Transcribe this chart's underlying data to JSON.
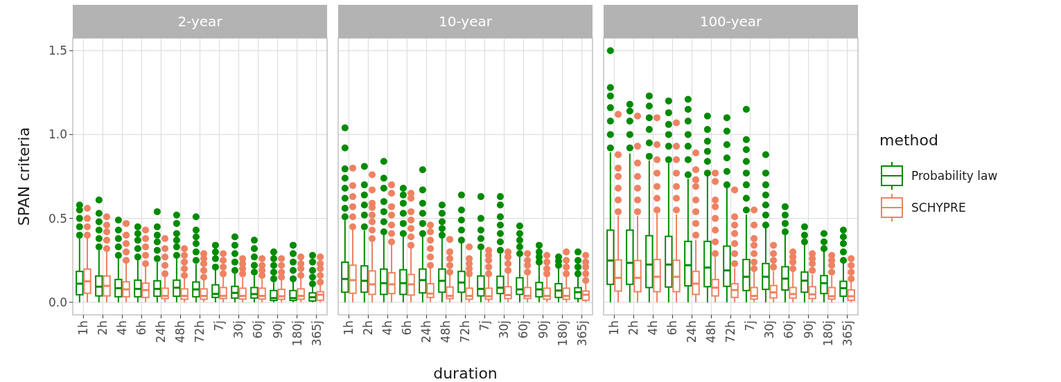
{
  "chart_data": [
    {
      "type": "box",
      "title": "2-year",
      "ylabel": "SPAN criteria",
      "categories": [
        "1h",
        "2h",
        "4h",
        "6h",
        "24h",
        "48h",
        "72h",
        "7j",
        "30j",
        "60j",
        "90j",
        "180j",
        "365j"
      ],
      "ylim": [
        -0.075,
        1.575
      ],
      "yticks": [
        {
          "value": 0,
          "label": "0.0"
        },
        0.5,
        {
          "value": 1,
          "label": "1.0"
        },
        1.5
      ],
      "grid": true,
      "legend": false,
      "series": [
        {
          "color": "#008b00",
          "boxes": [
            {
              "low": 0,
              "q1": 0.045,
              "median": 0.111,
              "q3": 0.184,
              "high": 0.38,
              "outliers": [
                0.4,
                0.45,
                0.5,
                0.55,
                0.58
              ]
            },
            {
              "low": 0,
              "q1": 0.038,
              "median": 0.093,
              "q3": 0.157,
              "high": 0.31,
              "outliers": [
                0.33,
                0.38,
                0.43,
                0.48,
                0.53,
                0.61
              ]
            },
            {
              "low": 0,
              "q1": 0.033,
              "median": 0.084,
              "q3": 0.136,
              "high": 0.26,
              "outliers": [
                0.28,
                0.33,
                0.38,
                0.43,
                0.49
              ]
            },
            {
              "low": 0,
              "q1": 0.033,
              "median": 0.08,
              "q3": 0.132,
              "high": 0.255,
              "outliers": [
                0.27,
                0.32,
                0.37,
                0.41,
                0.45
              ]
            },
            {
              "low": 0,
              "q1": 0.036,
              "median": 0.08,
              "q3": 0.128,
              "high": 0.24,
              "outliers": [
                0.26,
                0.31,
                0.36,
                0.4,
                0.45,
                0.54
              ]
            },
            {
              "low": 0,
              "q1": 0.036,
              "median": 0.087,
              "q3": 0.132,
              "high": 0.26,
              "outliers": [
                0.28,
                0.33,
                0.37,
                0.41,
                0.47,
                0.52
              ]
            },
            {
              "low": 0,
              "q1": 0.033,
              "median": 0.077,
              "q3": 0.121,
              "high": 0.228,
              "outliers": [
                0.25,
                0.3,
                0.35,
                0.39,
                0.43,
                0.51
              ]
            },
            {
              "low": 0,
              "q1": 0.029,
              "median": 0.05,
              "q3": 0.104,
              "high": 0.194,
              "outliers": [
                0.21,
                0.26,
                0.3,
                0.34
              ]
            },
            {
              "low": 0,
              "q1": 0.025,
              "median": 0.056,
              "q3": 0.095,
              "high": 0.173,
              "outliers": [
                0.19,
                0.24,
                0.29,
                0.34,
                0.39
              ]
            },
            {
              "low": 0,
              "q1": 0.025,
              "median": 0.049,
              "q3": 0.088,
              "high": 0.159,
              "outliers": [
                0.18,
                0.22,
                0.27,
                0.32,
                0.37
              ]
            },
            {
              "low": 0,
              "q1": 0.011,
              "median": 0.025,
              "q3": 0.07,
              "high": 0.118,
              "outliers": [
                0.14,
                0.18,
                0.22,
                0.26,
                0.3
              ]
            },
            {
              "low": 0,
              "q1": 0.011,
              "median": 0.025,
              "q3": 0.07,
              "high": 0.125,
              "outliers": [
                0.14,
                0.19,
                0.24,
                0.29,
                0.34
              ]
            },
            {
              "low": 0,
              "q1": 0.008,
              "median": 0.03,
              "q3": 0.056,
              "high": 0.09,
              "outliers": [
                0.11,
                0.15,
                0.19,
                0.24,
                0.28
              ]
            }
          ]
        },
        {
          "color": "#ee8262",
          "boxes": [
            {
              "low": 0,
              "q1": 0.054,
              "median": 0.125,
              "q3": 0.198,
              "high": 0.386,
              "outliers": [
                0.4,
                0.45,
                0.5,
                0.56
              ]
            },
            {
              "low": 0,
              "q1": 0.038,
              "median": 0.098,
              "q3": 0.157,
              "high": 0.3,
              "outliers": [
                0.32,
                0.37,
                0.42,
                0.46,
                0.51
              ]
            },
            {
              "low": 0,
              "q1": 0.033,
              "median": 0.077,
              "q3": 0.122,
              "high": 0.235,
              "outliers": [
                0.25,
                0.3,
                0.35,
                0.4,
                0.47
              ]
            },
            {
              "low": 0,
              "q1": 0.029,
              "median": 0.073,
              "q3": 0.114,
              "high": 0.214,
              "outliers": [
                0.23,
                0.28,
                0.33,
                0.38,
                0.43
              ]
            },
            {
              "low": 0,
              "q1": 0.022,
              "median": 0.038,
              "q3": 0.084,
              "high": 0.152,
              "outliers": [
                0.17,
                0.22,
                0.27,
                0.32,
                0.38
              ]
            },
            {
              "low": 0,
              "q1": 0.018,
              "median": 0.038,
              "q3": 0.08,
              "high": 0.146,
              "outliers": [
                0.16,
                0.2,
                0.24,
                0.28,
                0.32
              ]
            },
            {
              "low": 0,
              "q1": 0.018,
              "median": 0.038,
              "q3": 0.08,
              "high": 0.139,
              "outliers": [
                0.15,
                0.19,
                0.23,
                0.26,
                0.29
              ]
            },
            {
              "low": 0,
              "q1": 0.022,
              "median": 0.038,
              "q3": 0.088,
              "high": 0.152,
              "outliers": [
                0.17,
                0.21,
                0.25,
                0.29
              ]
            },
            {
              "low": 0,
              "q1": 0.019,
              "median": 0.038,
              "q3": 0.084,
              "high": 0.15,
              "outliers": [
                0.17,
                0.2,
                0.23,
                0.26
              ]
            },
            {
              "low": 0,
              "q1": 0.019,
              "median": 0.038,
              "q3": 0.084,
              "high": 0.14,
              "outliers": [
                0.16,
                0.19,
                0.22,
                0.26
              ]
            },
            {
              "low": 0,
              "q1": 0.018,
              "median": 0.036,
              "q3": 0.077,
              "high": 0.136,
              "outliers": [
                0.15,
                0.18,
                0.22,
                0.26
              ]
            },
            {
              "low": 0,
              "q1": 0.018,
              "median": 0.038,
              "q3": 0.08,
              "high": 0.146,
              "outliers": [
                0.16,
                0.2,
                0.23,
                0.27
              ]
            },
            {
              "low": 0,
              "q1": 0.012,
              "median": 0.045,
              "q3": 0.063,
              "high": 0.104,
              "outliers": [
                0.12,
                0.16,
                0.2,
                0.23,
                0.27
              ]
            }
          ]
        }
      ]
    },
    {
      "type": "box",
      "title": "10-year",
      "xlabel": "duration",
      "categories": [
        "1h",
        "2h",
        "4h",
        "6h",
        "24h",
        "48h",
        "72h",
        "7j",
        "30j",
        "60j",
        "90j",
        "180j",
        "365j"
      ],
      "ylim": [
        -0.075,
        1.575
      ],
      "yticks": [
        {
          "value": 0,
          "label": null
        },
        {
          "value": 0.5,
          "label": null
        },
        {
          "value": 1,
          "label": null
        },
        {
          "value": 1.5,
          "label": null
        }
      ],
      "tick_labels": "x",
      "grid": true,
      "legend": false,
      "series": [
        {
          "color": "#008b00",
          "boxes": [
            {
              "low": 0,
              "q1": 0.06,
              "median": 0.139,
              "q3": 0.239,
              "high": 0.489,
              "outliers": [
                0.51,
                0.56,
                0.62,
                0.68,
                0.74,
                0.795,
                0.92,
                1.04
              ]
            },
            {
              "low": 0,
              "q1": 0.06,
              "median": 0.128,
              "q3": 0.217,
              "high": 0.427,
              "outliers": [
                0.45,
                0.52,
                0.58,
                0.64,
                0.7,
                0.81
              ]
            },
            {
              "low": 0,
              "q1": 0.047,
              "median": 0.114,
              "q3": 0.198,
              "high": 0.4,
              "outliers": [
                0.42,
                0.48,
                0.54,
                0.6,
                0.68,
                0.74,
                0.84
              ]
            },
            {
              "low": 0,
              "q1": 0.047,
              "median": 0.114,
              "q3": 0.194,
              "high": 0.393,
              "outliers": [
                0.41,
                0.47,
                0.53,
                0.59,
                0.64,
                0.68
              ]
            },
            {
              "low": 0,
              "q1": 0.056,
              "median": 0.132,
              "q3": 0.198,
              "high": 0.393,
              "outliers": [
                0.41,
                0.47,
                0.53,
                0.59,
                0.67,
                0.79
              ]
            },
            {
              "low": 0,
              "q1": 0.06,
              "median": 0.128,
              "q3": 0.198,
              "high": 0.386,
              "outliers": [
                0.4,
                0.44,
                0.48,
                0.53,
                0.58
              ]
            },
            {
              "low": 0,
              "q1": 0.06,
              "median": 0.118,
              "q3": 0.184,
              "high": 0.352,
              "outliers": [
                0.37,
                0.43,
                0.49,
                0.55,
                0.64
              ]
            },
            {
              "low": 0,
              "q1": 0.038,
              "median": 0.08,
              "q3": 0.157,
              "high": 0.31,
              "outliers": [
                0.33,
                0.38,
                0.43,
                0.5,
                0.63
              ]
            },
            {
              "low": 0,
              "q1": 0.052,
              "median": 0.087,
              "q3": 0.155,
              "high": 0.29,
              "outliers": [
                0.31,
                0.36,
                0.41,
                0.46,
                0.51,
                0.58,
                0.63
              ]
            },
            {
              "low": 0,
              "q1": 0.047,
              "median": 0.077,
              "q3": 0.146,
              "high": 0.276,
              "outliers": [
                0.29,
                0.33,
                0.37,
                0.41,
                0.455
              ]
            },
            {
              "low": 0,
              "q1": 0.033,
              "median": 0.077,
              "q3": 0.118,
              "high": 0.228,
              "outliers": [
                0.24,
                0.27,
                0.3,
                0.34
              ]
            },
            {
              "low": 0,
              "q1": 0.029,
              "median": 0.07,
              "q3": 0.111,
              "high": 0.207,
              "outliers": [
                0.22,
                0.245,
                0.27
              ]
            },
            {
              "low": 0,
              "q1": 0.022,
              "median": 0.06,
              "q3": 0.087,
              "high": 0.152,
              "outliers": [
                0.17,
                0.21,
                0.25,
                0.3
              ]
            }
          ]
        },
        {
          "color": "#ee8262",
          "boxes": [
            {
              "low": 0,
              "q1": 0.054,
              "median": 0.132,
              "q3": 0.221,
              "high": 0.434,
              "outliers": [
                0.45,
                0.51,
                0.57,
                0.63,
                0.695,
                0.8
              ]
            },
            {
              "low": 0,
              "q1": 0.047,
              "median": 0.107,
              "q3": 0.187,
              "high": 0.365,
              "outliers": [
                0.38,
                0.43,
                0.48,
                0.52,
                0.565,
                0.59,
                0.67,
                0.76
              ]
            },
            {
              "low": 0,
              "q1": 0.052,
              "median": 0.107,
              "q3": 0.176,
              "high": 0.342,
              "outliers": [
                0.36,
                0.41,
                0.46,
                0.52,
                0.57,
                0.65,
                0.7
              ]
            },
            {
              "low": 0,
              "q1": 0.043,
              "median": 0.107,
              "q3": 0.166,
              "high": 0.324,
              "outliers": [
                0.34,
                0.39,
                0.44,
                0.49,
                0.54,
                0.62,
                0.65
              ]
            },
            {
              "low": 0,
              "q1": 0.029,
              "median": 0.052,
              "q3": 0.111,
              "high": 0.207,
              "outliers": [
                0.22,
                0.27,
                0.32,
                0.37,
                0.42,
                0.46
              ]
            },
            {
              "low": 0,
              "q1": 0.022,
              "median": 0.038,
              "q3": 0.091,
              "high": 0.166,
              "outliers": [
                0.18,
                0.22,
                0.26,
                0.3,
                0.375
              ]
            },
            {
              "low": 0,
              "q1": 0.018,
              "median": 0.038,
              "q3": 0.084,
              "high": 0.152,
              "outliers": [
                0.17,
                0.2,
                0.23,
                0.26,
                0.33
              ]
            },
            {
              "low": 0,
              "q1": 0.018,
              "median": 0.036,
              "q3": 0.084,
              "high": 0.152,
              "outliers": [
                0.17,
                0.21,
                0.25,
                0.28,
                0.31
              ]
            },
            {
              "low": 0,
              "q1": 0.022,
              "median": 0.043,
              "q3": 0.093,
              "high": 0.173,
              "outliers": [
                0.19,
                0.23,
                0.27,
                0.3
              ]
            },
            {
              "low": 0,
              "q1": 0.022,
              "median": 0.038,
              "q3": 0.088,
              "high": 0.159,
              "outliers": [
                0.18,
                0.22,
                0.25,
                0.29
              ]
            },
            {
              "low": 0,
              "q1": 0.018,
              "median": 0.038,
              "q3": 0.084,
              "high": 0.152,
              "outliers": [
                0.17,
                0.2,
                0.24,
                0.28
              ]
            },
            {
              "low": 0,
              "q1": 0.018,
              "median": 0.038,
              "q3": 0.084,
              "high": 0.152,
              "outliers": [
                0.17,
                0.21,
                0.25,
                0.3
              ]
            },
            {
              "low": 0,
              "q1": 0.012,
              "median": 0.045,
              "q3": 0.067,
              "high": 0.111,
              "outliers": [
                0.13,
                0.17,
                0.21,
                0.24,
                0.28
              ]
            }
          ]
        }
      ]
    },
    {
      "type": "box",
      "title": "100-year",
      "categories": [
        "1h",
        "2h",
        "4h",
        "6h",
        "24h",
        "48h",
        "72h",
        "7j",
        "30j",
        "60j",
        "90j",
        "180j",
        "365j"
      ],
      "ylim": [
        -0.075,
        1.575
      ],
      "yticks": [
        {
          "value": 0,
          "label": null
        },
        {
          "value": 0.5,
          "label": null
        },
        {
          "value": 1,
          "label": null
        },
        {
          "value": 1.5,
          "label": null
        }
      ],
      "tick_labels": "x",
      "grid": true,
      "legend": "right",
      "legend_title": "method",
      "series": [
        {
          "name": "Probability law",
          "color": "#008b00",
          "boxes": [
            {
              "low": 0,
              "q1": 0.107,
              "median": 0.249,
              "q3": 0.43,
              "high": 0.894,
              "outliers": [
                0.92,
                1.0,
                1.08,
                1.16,
                1.23,
                1.28,
                1.5
              ]
            },
            {
              "low": 0,
              "q1": 0.107,
              "median": 0.235,
              "q3": 0.43,
              "high": 0.887,
              "outliers": [
                0.92,
                1.0,
                1.08,
                1.14,
                1.18
              ]
            },
            {
              "low": 0,
              "q1": 0.088,
              "median": 0.225,
              "q3": 0.397,
              "high": 0.846,
              "outliers": [
                0.87,
                0.95,
                1.03,
                1.1,
                1.17,
                1.23
              ]
            },
            {
              "low": 0,
              "q1": 0.091,
              "median": 0.225,
              "q3": 0.393,
              "high": 0.83,
              "outliers": [
                0.85,
                0.93,
                1.0,
                1.06,
                1.13,
                1.2
              ]
            },
            {
              "low": 0,
              "q1": 0.098,
              "median": 0.221,
              "q3": 0.363,
              "high": 0.736,
              "outliers": [
                0.76,
                0.85,
                0.93,
                1.0,
                1.08,
                1.15,
                1.21
              ]
            },
            {
              "low": 0,
              "q1": 0.093,
              "median": 0.207,
              "q3": 0.363,
              "high": 0.75,
              "outliers": [
                0.77,
                0.84,
                0.9,
                0.96,
                1.03,
                1.11
              ]
            },
            {
              "low": 0,
              "q1": 0.095,
              "median": 0.19,
              "q3": 0.335,
              "high": 0.681,
              "outliers": [
                0.7,
                0.78,
                0.86,
                0.94,
                1.02,
                1.1
              ]
            },
            {
              "low": 0,
              "q1": 0.07,
              "median": 0.152,
              "q3": 0.255,
              "high": 0.523,
              "outliers": [
                0.55,
                0.62,
                0.7,
                0.77,
                0.84,
                0.91,
                0.97,
                1.15
              ]
            },
            {
              "low": 0,
              "q1": 0.077,
              "median": 0.152,
              "q3": 0.231,
              "high": 0.441,
              "outliers": [
                0.46,
                0.52,
                0.58,
                0.64,
                0.7,
                0.77,
                0.88
              ]
            },
            {
              "low": 0,
              "q1": 0.073,
              "median": 0.141,
              "q3": 0.212,
              "high": 0.4,
              "outliers": [
                0.42,
                0.47,
                0.52,
                0.57
              ]
            },
            {
              "low": 0,
              "q1": 0.06,
              "median": 0.129,
              "q3": 0.18,
              "high": 0.348,
              "outliers": [
                0.36,
                0.4,
                0.45
              ]
            },
            {
              "low": 0,
              "q1": 0.052,
              "median": 0.114,
              "q3": 0.159,
              "high": 0.306,
              "outliers": [
                0.32,
                0.36,
                0.41
              ]
            },
            {
              "low": 0,
              "q1": 0.036,
              "median": 0.084,
              "q3": 0.125,
              "high": 0.235,
              "outliers": [
                0.25,
                0.3,
                0.35,
                0.39,
                0.43
              ]
            }
          ]
        },
        {
          "name": "SCHYPRE",
          "color": "#ee8262",
          "boxes": [
            {
              "low": 0,
              "q1": 0.067,
              "median": 0.146,
              "q3": 0.253,
              "high": 0.516,
              "outliers": [
                0.54,
                0.61,
                0.68,
                0.75,
                0.8,
                0.88,
                1.12
              ]
            },
            {
              "low": 0,
              "q1": 0.063,
              "median": 0.146,
              "q3": 0.249,
              "high": 0.516,
              "outliers": [
                0.54,
                0.61,
                0.68,
                0.75,
                0.83,
                0.93,
                1.11
              ]
            },
            {
              "low": 0,
              "q1": 0.063,
              "median": 0.152,
              "q3": 0.255,
              "high": 0.53,
              "outliers": [
                0.55,
                0.62,
                0.69,
                0.77,
                0.85,
                0.94,
                1.1
              ]
            },
            {
              "low": 0,
              "q1": 0.063,
              "median": 0.152,
              "q3": 0.251,
              "high": 0.523,
              "outliers": [
                0.55,
                0.62,
                0.69,
                0.77,
                0.85,
                0.93,
                1.07
              ]
            },
            {
              "low": 0,
              "q1": 0.047,
              "median": 0.111,
              "q3": 0.184,
              "high": 0.372,
              "outliers": [
                0.4,
                0.47,
                0.54,
                0.61,
                0.69,
                0.73,
                0.79,
                0.89
              ]
            },
            {
              "low": 0,
              "q1": 0.038,
              "median": 0.087,
              "q3": 0.136,
              "high": 0.269,
              "outliers": [
                0.29,
                0.36,
                0.43,
                0.5,
                0.57,
                0.61,
                0.72,
                0.77
              ]
            },
            {
              "low": 0,
              "q1": 0.029,
              "median": 0.073,
              "q3": 0.111,
              "high": 0.207,
              "outliers": [
                0.23,
                0.29,
                0.35,
                0.41,
                0.46,
                0.51,
                0.67
              ]
            },
            {
              "low": 0,
              "q1": 0.019,
              "median": 0.038,
              "q3": 0.088,
              "high": 0.18,
              "outliers": [
                0.2,
                0.24,
                0.29,
                0.34,
                0.38,
                0.46,
                0.55
              ]
            },
            {
              "low": 0,
              "q1": 0.026,
              "median": 0.059,
              "q3": 0.1,
              "high": 0.187,
              "outliers": [
                0.21,
                0.25,
                0.29,
                0.34
              ]
            },
            {
              "low": 0,
              "q1": 0.025,
              "median": 0.049,
              "q3": 0.088,
              "high": 0.18,
              "outliers": [
                0.2,
                0.24,
                0.27,
                0.3
              ]
            },
            {
              "low": 0,
              "q1": 0.022,
              "median": 0.047,
              "q3": 0.093,
              "high": 0.166,
              "outliers": [
                0.19,
                0.23,
                0.26,
                0.29
              ]
            },
            {
              "low": 0,
              "q1": 0.019,
              "median": 0.036,
              "q3": 0.088,
              "high": 0.159,
              "outliers": [
                0.18,
                0.22,
                0.25,
                0.28
              ]
            },
            {
              "low": 0,
              "q1": 0.012,
              "median": 0.036,
              "q3": 0.074,
              "high": 0.125,
              "outliers": [
                0.14,
                0.18,
                0.22,
                0.26
              ]
            }
          ]
        }
      ]
    }
  ]
}
